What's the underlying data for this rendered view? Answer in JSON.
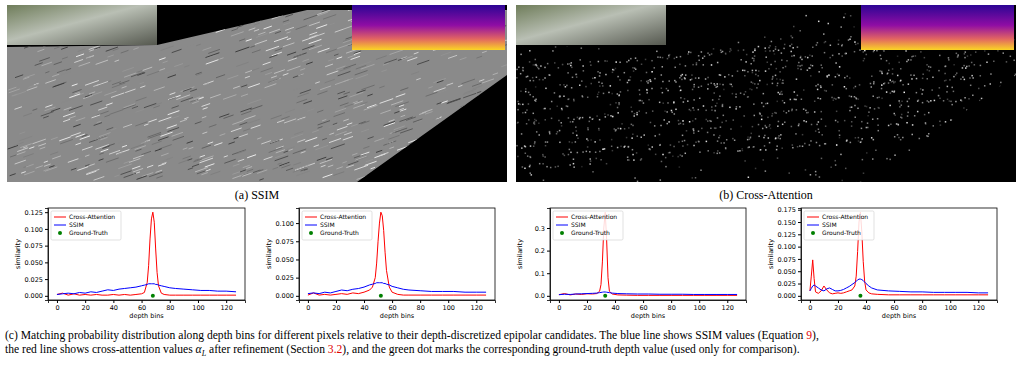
{
  "panels": [
    {
      "label": "(a) SSIM"
    },
    {
      "label": "(b) Cross-Attention"
    }
  ],
  "chart_data": [
    {
      "type": "line",
      "x": [
        0,
        4,
        8,
        12,
        16,
        20,
        24,
        28,
        32,
        36,
        40,
        44,
        48,
        52,
        56,
        60,
        62,
        64,
        65,
        66,
        67,
        68,
        69,
        70,
        71,
        72,
        74,
        76,
        80,
        84,
        90,
        96,
        102,
        108,
        114,
        120,
        127
      ],
      "series": [
        {
          "name": "Cross-Attention",
          "color": "red",
          "type": "line",
          "line_style": "solid",
          "values": [
            0.002,
            0.004,
            0.001,
            0.003,
            0.001,
            0.002,
            0.001,
            0.002,
            0.001,
            0.001,
            0.002,
            0.001,
            0.002,
            0.001,
            0.002,
            0.003,
            0.005,
            0.02,
            0.045,
            0.085,
            0.115,
            0.125,
            0.11,
            0.07,
            0.035,
            0.015,
            0.004,
            0.002,
            0.001,
            0.001,
            0.001,
            0.001,
            0.001,
            0.001,
            0.001,
            0.001,
            0.001
          ]
        },
        {
          "name": "SSIM",
          "color": "blue",
          "type": "line",
          "line_style": "solid",
          "values": [
            0.002,
            0.003,
            0.004,
            0.003,
            0.005,
            0.004,
            0.006,
            0.005,
            0.007,
            0.009,
            0.008,
            0.01,
            0.011,
            0.012,
            0.013,
            0.015,
            0.016,
            0.017,
            0.018,
            0.018,
            0.018,
            0.018,
            0.018,
            0.017,
            0.017,
            0.016,
            0.015,
            0.014,
            0.012,
            0.011,
            0.01,
            0.009,
            0.008,
            0.008,
            0.007,
            0.007,
            0.006
          ]
        },
        {
          "name": "Ground-Truth",
          "color": "green",
          "type": "scatter",
          "marker": "circle",
          "x": [
            68
          ],
          "values": [
            0
          ]
        }
      ],
      "x_label": "depth bins",
      "y_label": "similarity",
      "xlim": [
        -6.35,
        133.35
      ],
      "xticks": [
        0,
        20,
        40,
        60,
        80,
        100,
        120
      ],
      "ylim": [
        -0.00625,
        0.13125
      ],
      "yticks": [
        {
          "value": 0,
          "label": "0.000"
        },
        {
          "value": 0.025,
          "label": "0.025"
        },
        {
          "value": 0.05,
          "label": "0.050"
        },
        {
          "value": 0.075,
          "label": "0.075"
        },
        {
          "value": 0.1,
          "label": "0.100"
        },
        {
          "value": 0.125,
          "label": "0.125"
        }
      ],
      "legend": "upper left",
      "grid": false
    },
    {
      "type": "line",
      "x": [
        0,
        4,
        8,
        12,
        16,
        20,
        24,
        28,
        32,
        36,
        40,
        44,
        46,
        48,
        49,
        50,
        51,
        52,
        53,
        54,
        55,
        56,
        58,
        60,
        64,
        68,
        72,
        80,
        88,
        96,
        104,
        112,
        120,
        127
      ],
      "series": [
        {
          "name": "Cross-Attention",
          "color": "red",
          "type": "line",
          "line_style": "solid",
          "values": [
            0.001,
            0.004,
            0.001,
            0.002,
            0.001,
            0.002,
            0.003,
            0.002,
            0.004,
            0.003,
            0.005,
            0.008,
            0.012,
            0.025,
            0.045,
            0.075,
            0.1,
            0.115,
            0.11,
            0.09,
            0.06,
            0.035,
            0.012,
            0.005,
            0.002,
            0.001,
            0.001,
            0.001,
            0.001,
            0.001,
            0.001,
            0.001,
            0.001,
            0.001
          ]
        },
        {
          "name": "SSIM",
          "color": "blue",
          "type": "line",
          "line_style": "solid",
          "values": [
            0.003,
            0.004,
            0.003,
            0.005,
            0.004,
            0.006,
            0.008,
            0.007,
            0.009,
            0.01,
            0.012,
            0.015,
            0.016,
            0.017,
            0.018,
            0.018,
            0.018,
            0.018,
            0.018,
            0.017,
            0.017,
            0.016,
            0.015,
            0.013,
            0.011,
            0.009,
            0.008,
            0.007,
            0.006,
            0.006,
            0.006,
            0.005,
            0.005,
            0.005
          ]
        },
        {
          "name": "Ground-Truth",
          "color": "green",
          "type": "scatter",
          "marker": "circle",
          "x": [
            52
          ],
          "values": [
            0
          ]
        }
      ],
      "x_label": "depth bins",
      "y_label": "similarity",
      "xlim": [
        -6.35,
        133.35
      ],
      "xticks": [
        0,
        20,
        40,
        60,
        80,
        100,
        120
      ],
      "ylim": [
        -0.00575,
        0.12075
      ],
      "yticks": [
        {
          "value": 0,
          "label": "0.000"
        },
        {
          "value": 0.025,
          "label": "0.025"
        },
        {
          "value": 0.05,
          "label": "0.050"
        },
        {
          "value": 0.075,
          "label": "0.075"
        },
        {
          "value": 0.1,
          "label": "0.100"
        }
      ],
      "legend": "upper left",
      "grid": false
    },
    {
      "type": "line",
      "x": [
        0,
        4,
        8,
        12,
        16,
        20,
        24,
        27,
        29,
        30,
        31,
        32,
        33,
        34,
        35,
        36,
        38,
        42,
        48,
        56,
        64,
        72,
        80,
        88,
        96,
        104,
        112,
        120,
        127
      ],
      "series": [
        {
          "name": "Cross-Attention",
          "color": "red",
          "type": "line",
          "line_style": "solid",
          "values": [
            0.005,
            0.01,
            0.004,
            0.008,
            0.006,
            0.009,
            0.008,
            0.01,
            0.02,
            0.05,
            0.15,
            0.3,
            0.37,
            0.25,
            0.08,
            0.02,
            0.008,
            0.004,
            0.003,
            0.002,
            0.002,
            0.002,
            0.002,
            0.002,
            0.002,
            0.002,
            0.002,
            0.002,
            0.002
          ]
        },
        {
          "name": "SSIM",
          "color": "blue",
          "type": "line",
          "line_style": "solid",
          "values": [
            0.005,
            0.007,
            0.006,
            0.008,
            0.009,
            0.01,
            0.011,
            0.012,
            0.014,
            0.015,
            0.016,
            0.017,
            0.017,
            0.016,
            0.015,
            0.014,
            0.012,
            0.01,
            0.009,
            0.008,
            0.008,
            0.007,
            0.007,
            0.007,
            0.006,
            0.006,
            0.006,
            0.006,
            0.006
          ]
        },
        {
          "name": "Ground-Truth",
          "color": "green",
          "type": "scatter",
          "marker": "circle",
          "x": [
            33
          ],
          "values": [
            0
          ]
        }
      ],
      "x_label": "depth bins",
      "y_label": "similarity",
      "xlim": [
        -6.35,
        133.35
      ],
      "xticks": [
        0,
        20,
        40,
        60,
        80,
        100,
        120
      ],
      "ylim": [
        -0.0185,
        0.3885
      ],
      "yticks": [
        {
          "value": 0,
          "label": "0.0"
        },
        {
          "value": 0.1,
          "label": "0.1"
        },
        {
          "value": 0.2,
          "label": "0.2"
        },
        {
          "value": 0.3,
          "label": "0.3"
        }
      ],
      "legend": "upper left",
      "grid": false
    },
    {
      "type": "line",
      "x": [
        0,
        1,
        2,
        3,
        4,
        6,
        8,
        10,
        12,
        14,
        16,
        18,
        20,
        22,
        24,
        26,
        28,
        30,
        32,
        33,
        34,
        35,
        36,
        37,
        38,
        39,
        40,
        42,
        44,
        48,
        56,
        64,
        72,
        80,
        88,
        96,
        104,
        112,
        120,
        127
      ],
      "series": [
        {
          "name": "Cross-Attention",
          "color": "red",
          "type": "line",
          "line_style": "solid",
          "values": [
            0.01,
            0.04,
            0.073,
            0.035,
            0.008,
            0.005,
            0.01,
            0.02,
            0.012,
            0.006,
            0.004,
            0.005,
            0.006,
            0.005,
            0.006,
            0.008,
            0.01,
            0.012,
            0.02,
            0.04,
            0.09,
            0.15,
            0.17,
            0.13,
            0.07,
            0.03,
            0.012,
            0.006,
            0.004,
            0.003,
            0.002,
            0.002,
            0.002,
            0.002,
            0.002,
            0.002,
            0.002,
            0.002,
            0.002,
            0.002
          ]
        },
        {
          "name": "SSIM",
          "color": "blue",
          "type": "line",
          "line_style": "solid",
          "values": [
            0.01,
            0.015,
            0.02,
            0.022,
            0.02,
            0.016,
            0.012,
            0.01,
            0.014,
            0.016,
            0.013,
            0.01,
            0.01,
            0.011,
            0.013,
            0.016,
            0.019,
            0.023,
            0.027,
            0.03,
            0.032,
            0.034,
            0.034,
            0.033,
            0.031,
            0.028,
            0.025,
            0.02,
            0.016,
            0.012,
            0.01,
            0.009,
            0.008,
            0.008,
            0.007,
            0.007,
            0.007,
            0.007,
            0.006,
            0.006
          ]
        },
        {
          "name": "Ground-Truth",
          "color": "green",
          "type": "scatter",
          "marker": "circle",
          "x": [
            36
          ],
          "values": [
            0
          ]
        }
      ],
      "x_label": "depth bins",
      "y_label": "similarity",
      "xlim": [
        -6.35,
        133.35
      ],
      "xticks": [
        0,
        20,
        40,
        60,
        80,
        100,
        120
      ],
      "ylim": [
        -0.0085,
        0.1785
      ],
      "yticks": [
        {
          "value": 0,
          "label": "0.000"
        },
        {
          "value": 0.025,
          "label": "0.025"
        },
        {
          "value": 0.05,
          "label": "0.050"
        },
        {
          "value": 0.075,
          "label": "0.075"
        },
        {
          "value": 0.1,
          "label": "0.100"
        },
        {
          "value": 0.125,
          "label": "0.125"
        },
        {
          "value": 0.15,
          "label": "0.150"
        },
        {
          "value": 0.175,
          "label": "0.175"
        }
      ],
      "legend": "upper left",
      "grid": false
    }
  ],
  "caption": {
    "lines": [
      [
        {
          "text": "(c) Matching probability distribution along depth bins for different pixels relative to their depth-discretized epipolar candidates. The blue line shows SSIM values (Equation "
        },
        {
          "text": "9",
          "link": true
        },
        {
          "text": "),"
        }
      ],
      [
        {
          "text": "the red line shows cross-attention values "
        },
        {
          "text": "α",
          "math": true
        },
        {
          "text": "L",
          "math": true,
          "subscript": true
        },
        {
          "text": " after refinement (Section "
        },
        {
          "text": "3.2",
          "link": true
        },
        {
          "text": "), and the green dot marks the corresponding ground-truth depth value (used only for comparison)."
        }
      ]
    ]
  }
}
